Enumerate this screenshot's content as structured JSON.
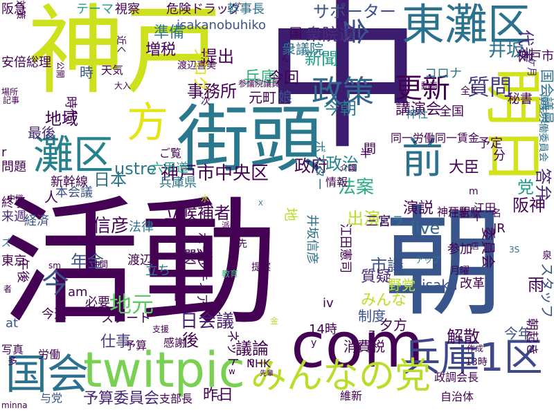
{
  "words": [
    {
      "text": "活動",
      "color": "#440154"
    },
    {
      "text": "中",
      "color": "#3b1c6e"
    },
    {
      "text": "朝",
      "color": "#39568c"
    },
    {
      "text": "神戸",
      "color": "#cde11d"
    },
    {
      "text": "街頭",
      "color": "#2a788e"
    },
    {
      "text": "com",
      "color": "#440154"
    },
    {
      "text": "twitpic",
      "color": "#7ad151"
    },
    {
      "text": "東灘区",
      "color": "#2c728e"
    },
    {
      "text": "明日",
      "color": "#d2e21b"
    },
    {
      "text": "兵庫1区",
      "color": "#3e4989"
    },
    {
      "text": "国会",
      "color": "#2c728e"
    },
    {
      "text": "みんなの党",
      "color": "#b8de29"
    },
    {
      "text": "灘区",
      "color": "#26828e"
    },
    {
      "text": "前",
      "color": "#2c728e"
    },
    {
      "text": "方",
      "color": "#e5e419"
    },
    {
      "text": "政策",
      "color": "#31688e"
    },
    {
      "text": "更新",
      "color": "#440154"
    },
    {
      "text": "質問",
      "color": "#433e85"
    },
    {
      "text": "会",
      "color": "#3b528b"
    },
    {
      "text": "今",
      "color": "#3b528b"
    },
    {
      "text": "神戸市中央区",
      "color": "#440154"
    },
    {
      "text": "井坂",
      "color": "#2c728e"
    },
    {
      "text": "live",
      "color": "#31688e"
    },
    {
      "text": "立候補者",
      "color": "#440154"
    },
    {
      "text": "選挙",
      "color": "#440154"
    },
    {
      "text": "ustre",
      "color": "#2a788e"
    },
    {
      "text": "法案",
      "color": "#27ad81"
    },
    {
      "text": "代表",
      "color": "#472d7b"
    },
    {
      "text": "市議",
      "color": "#3b528b"
    },
    {
      "text": "地元",
      "color": "#5ec962"
    },
    {
      "text": "議論",
      "color": "#440154"
    },
    {
      "text": "予算委員会",
      "color": "#482878"
    },
    {
      "text": "日本",
      "color": "#2c728e"
    },
    {
      "text": "政府",
      "color": "#440154"
    },
    {
      "text": "政治",
      "color": "#26828e"
    },
    {
      "text": "今朝",
      "color": "#2a788e"
    },
    {
      "text": "提出",
      "color": "#440154"
    },
    {
      "text": "兵庫",
      "color": "#35b779"
    },
    {
      "text": "事務所",
      "color": "#440154"
    },
    {
      "text": "地域",
      "color": "#440154"
    },
    {
      "text": "サポーター",
      "color": "#3b528b"
    },
    {
      "text": "衆院選",
      "color": "#472d7b"
    },
    {
      "text": "新聞",
      "color": "#1f9e89"
    },
    {
      "text": "信彦",
      "color": "#440154"
    },
    {
      "text": "年金",
      "color": "#3b528b"
    },
    {
      "text": "日会議",
      "color": "#481f70"
    },
    {
      "text": "質疑",
      "color": "#482878"
    },
    {
      "text": "仕事",
      "color": "#433e85"
    },
    {
      "text": "後",
      "color": "#440154"
    },
    {
      "text": "昨日",
      "color": "#440154"
    },
    {
      "text": "演説",
      "color": "#440154"
    },
    {
      "text": "大臣",
      "color": "#440154"
    },
    {
      "text": "党",
      "color": "#1f9e89"
    },
    {
      "text": "阪神",
      "color": "#440154"
    },
    {
      "text": "答弁",
      "color": "#482878"
    },
    {
      "text": "雨",
      "color": "#440154"
    },
    {
      "text": "出演",
      "color": "#b5de2b"
    },
    {
      "text": "野党",
      "color": "#b8de29"
    },
    {
      "text": "みんな",
      "color": "#b8de29"
    },
    {
      "text": "制度",
      "color": "#3b528b"
    },
    {
      "text": "消費税",
      "color": "#440154"
    },
    {
      "text": "今年",
      "color": "#3b528b"
    },
    {
      "text": "ブログ",
      "color": "#dde318"
    },
    {
      "text": "地",
      "color": "#b8de29"
    },
    {
      "text": "人",
      "color": "#440154"
    },
    {
      "text": "最後",
      "color": "#482878"
    },
    {
      "text": "時代",
      "color": "#440154"
    },
    {
      "text": "準備",
      "color": "#2a788e"
    },
    {
      "text": "増税",
      "color": "#440154"
    },
    {
      "text": "時",
      "color": "#3b528b"
    },
    {
      "text": "天気",
      "color": "#440154"
    },
    {
      "text": "渡辺喜美",
      "color": "#440154"
    },
    {
      "text": "isakanobuhiko",
      "color": "#3b528b"
    },
    {
      "text": "テーマ",
      "color": "#1f9e89"
    },
    {
      "text": "視察",
      "color": "#440154"
    },
    {
      "text": "危険ドラッグ",
      "color": "#440154"
    },
    {
      "text": "幹事長",
      "color": "#2c728e"
    },
    {
      "text": "阪急",
      "color": "#440154"
    },
    {
      "text": "安倍総理",
      "color": "#440154"
    },
    {
      "text": "対策",
      "color": "#440154"
    },
    {
      "text": "衆議院",
      "color": "#2c728e"
    },
    {
      "text": "元町",
      "color": "#440154"
    },
    {
      "text": "娘",
      "color": "#3b528b"
    },
    {
      "text": "今回",
      "color": "#440154"
    },
    {
      "text": "講演会",
      "color": "#440154"
    },
    {
      "text": "国会議員",
      "color": "#2c728e"
    },
    {
      "text": "神戸市",
      "color": "#440154"
    },
    {
      "text": "ケ月",
      "color": "#482878"
    },
    {
      "text": "予定",
      "color": "#440154"
    },
    {
      "text": "同一労働同一賃金",
      "color": "#440154"
    },
    {
      "text": "秘書",
      "color": "#440154"
    },
    {
      "text": "コロナ",
      "color": "#2a788e"
    },
    {
      "text": "全国",
      "color": "#440154"
    },
    {
      "text": "神社",
      "color": "#2c728e"
    },
    {
      "text": "動画",
      "color": "#440154"
    },
    {
      "text": "厚生労働委員会",
      "color": "#2c728e"
    },
    {
      "text": "本会議",
      "color": "#3b528b"
    },
    {
      "text": "六甲道",
      "color": "#1f9e89"
    },
    {
      "text": "兵庫県",
      "color": "#2a788e"
    },
    {
      "text": "新幹線",
      "color": "#440154"
    },
    {
      "text": "終了",
      "color": "#440154"
    },
    {
      "text": "来週",
      "color": "#482878"
    },
    {
      "text": "経済",
      "color": "#3b528b"
    },
    {
      "text": "法律",
      "color": "#2c728e"
    },
    {
      "text": "渡辺",
      "color": "#440154"
    },
    {
      "text": "立ち",
      "color": "#2c728e"
    },
    {
      "text": "問題",
      "color": "#440154"
    },
    {
      "text": "東京",
      "color": "#440154"
    },
    {
      "text": "ボランティア",
      "color": "#440154"
    },
    {
      "text": "ボスター",
      "color": "#2a788e"
    },
    {
      "text": "ビラ",
      "color": "#2a788e"
    },
    {
      "text": "井坂信彦",
      "color": "#2c728e"
    },
    {
      "text": "江田憲司",
      "color": "#440154"
    },
    {
      "text": "必要",
      "color": "#440154"
    },
    {
      "text": "スタート",
      "color": "#440154"
    },
    {
      "text": "at",
      "color": "#3b528b"
    },
    {
      "text": "am",
      "color": "#440154"
    },
    {
      "text": "iv",
      "color": "#440154"
    },
    {
      "text": "isaka",
      "color": "#3b528b"
    },
    {
      "text": "参加",
      "color": "#440154"
    },
    {
      "text": "改革",
      "color": "#440154"
    },
    {
      "text": "14時",
      "color": "#440154"
    },
    {
      "text": "今週",
      "color": "#440154"
    },
    {
      "text": "写真",
      "color": "#440154"
    },
    {
      "text": "労働",
      "color": "#440154"
    },
    {
      "text": "支部長",
      "color": "#440154"
    },
    {
      "text": "NHK",
      "color": "#440154"
    },
    {
      "text": "感謝",
      "color": "#440154"
    },
    {
      "text": "予算",
      "color": "#440154"
    },
    {
      "text": "ネット",
      "color": "#440154"
    },
    {
      "text": "維新",
      "color": "#440154"
    },
    {
      "text": "政調会長",
      "color": "#440154"
    },
    {
      "text": "自治体",
      "color": "#440154"
    },
    {
      "text": "朝起き",
      "color": "#440154"
    },
    {
      "text": "スタッフ",
      "color": "#3b528b"
    },
    {
      "text": "与党",
      "color": "#3b528b"
    },
    {
      "text": "minna",
      "color": "#440154"
    },
    {
      "text": "13時",
      "color": "#440154"
    },
    {
      "text": "作成",
      "color": "#440154"
    },
    {
      "text": "解散",
      "color": "#440154"
    },
    {
      "text": "金",
      "color": "#b8de29"
    },
    {
      "text": "委員会",
      "color": "#440154"
    },
    {
      "text": "神戸駅",
      "color": "#440154"
    },
    {
      "text": "住吉駅",
      "color": "#440154"
    },
    {
      "text": "江田",
      "color": "#440154"
    },
    {
      "text": "分",
      "color": "#440154"
    },
    {
      "text": "JR",
      "color": "#440154"
    },
    {
      "text": "3S",
      "color": "#2c728e"
    },
    {
      "text": "アップ",
      "color": "#2a788e"
    },
    {
      "text": "r",
      "color": "#440154"
    },
    {
      "text": "ご覧",
      "color": "#440154"
    },
    {
      "text": "半",
      "color": "#440154"
    },
    {
      "text": "情報",
      "color": "#440154"
    },
    {
      "text": "午後",
      "color": "#440154"
    },
    {
      "text": "ズ",
      "color": "#2c728e"
    },
    {
      "text": "記事",
      "color": "#440154"
    },
    {
      "text": "場所",
      "color": "#440154"
    },
    {
      "text": "sm",
      "color": "#440154"
    },
    {
      "text": "先",
      "color": "#440154"
    },
    {
      "text": "提案",
      "color": "#440154"
    },
    {
      "text": "教育",
      "color": "#35b779"
    },
    {
      "text": "派遣",
      "color": "#440154"
    },
    {
      "text": "支援",
      "color": "#440154"
    },
    {
      "text": "月曜",
      "color": "#440154"
    },
    {
      "text": "全て",
      "color": "#440154"
    },
    {
      "text": "次",
      "color": "#440154"
    },
    {
      "text": "参議院議員",
      "color": "#440154"
    },
    {
      "text": "公開",
      "color": "#440154"
    },
    {
      "text": "近く",
      "color": "#440154"
    },
    {
      "text": "大入",
      "color": "#440154"
    },
    {
      "text": "夕方",
      "color": "#440154"
    },
    {
      "text": "国",
      "color": "#440154"
    },
    {
      "text": "泉",
      "color": "#440154"
    },
    {
      "text": "店",
      "color": "#440154"
    },
    {
      "text": "仲間",
      "color": "#440154"
    },
    {
      "text": "先輩",
      "color": "#440154"
    },
    {
      "text": "三宮",
      "color": "#440154"
    },
    {
      "text": "P",
      "color": "#440154"
    },
    {
      "text": "w",
      "color": "#440154"
    },
    {
      "text": "介護",
      "color": "#440154"
    },
    {
      "text": "水",
      "color": "#b8de29"
    },
    {
      "text": "中継",
      "color": "#440154"
    },
    {
      "text": "名",
      "color": "#440154"
    },
    {
      "text": "間",
      "color": "#440154"
    },
    {
      "text": "的",
      "color": "#440154"
    },
    {
      "text": "o",
      "color": "#440154"
    },
    {
      "text": "者",
      "color": "#440154"
    },
    {
      "text": "多",
      "color": "#440154"
    },
    {
      "text": "X",
      "color": "#2c728e"
    },
    {
      "text": "y",
      "color": "#440154"
    },
    {
      "text": "m",
      "color": "#440154"
    },
    {
      "text": "ん",
      "color": "#440154"
    },
    {
      "text": "I",
      "color": "#440154"
    },
    {
      "text": "z",
      "color": "#440154"
    },
    {
      "text": "何",
      "color": "#440154"
    },
    {
      "text": "駅",
      "color": "#440154"
    }
  ]
}
